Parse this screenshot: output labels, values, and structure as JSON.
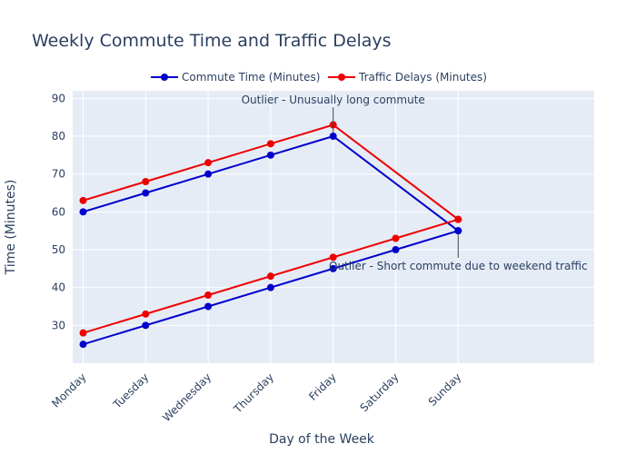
{
  "chart_data": {
    "type": "line",
    "title": "Weekly Commute Time and Traffic Delays",
    "xlabel": "Day of the Week",
    "ylabel": "Time (Minutes)",
    "categories": [
      "Monday",
      "Tuesday",
      "Wednesday",
      "Thursday",
      "Friday",
      "Saturday",
      "Sunday"
    ],
    "ylim": [
      20,
      92
    ],
    "yticks": [
      30,
      40,
      50,
      60,
      70,
      80,
      90
    ],
    "legend_position": "top-center",
    "grid": true,
    "series": [
      {
        "name": "Commute Time (Minutes)",
        "color": "#0000cc",
        "points": [
          {
            "x": "Monday",
            "y": 60
          },
          {
            "x": "Tuesday",
            "y": 65
          },
          {
            "x": "Wednesday",
            "y": 70
          },
          {
            "x": "Thursday",
            "y": 75
          },
          {
            "x": "Friday",
            "y": 80
          },
          {
            "x": "Sunday",
            "y": 55
          },
          {
            "x": "Monday",
            "y": 25
          },
          {
            "x": "Tuesday",
            "y": 30
          },
          {
            "x": "Wednesday",
            "y": 35
          },
          {
            "x": "Thursday",
            "y": 40
          },
          {
            "x": "Friday",
            "y": 45
          },
          {
            "x": "Saturday",
            "y": 50
          },
          {
            "x": "Sunday",
            "y": 55
          }
        ]
      },
      {
        "name": "Traffic Delays (Minutes)",
        "color": "#ee0000",
        "points": [
          {
            "x": "Monday",
            "y": 63
          },
          {
            "x": "Tuesday",
            "y": 68
          },
          {
            "x": "Wednesday",
            "y": 73
          },
          {
            "x": "Thursday",
            "y": 78
          },
          {
            "x": "Friday",
            "y": 83
          },
          {
            "x": "Sunday",
            "y": 58
          },
          {
            "x": "Monday",
            "y": 28
          },
          {
            "x": "Tuesday",
            "y": 33
          },
          {
            "x": "Wednesday",
            "y": 38
          },
          {
            "x": "Thursday",
            "y": 43
          },
          {
            "x": "Friday",
            "y": 48
          },
          {
            "x": "Saturday",
            "y": 53
          },
          {
            "x": "Sunday",
            "y": 58
          }
        ]
      }
    ],
    "annotations": [
      {
        "text": "Outlier - Unusually long commute",
        "x": "Friday",
        "y": 80
      },
      {
        "text": "Outlier - Short commute due to weekend traffic",
        "x": "Sunday",
        "y": 55
      }
    ]
  }
}
